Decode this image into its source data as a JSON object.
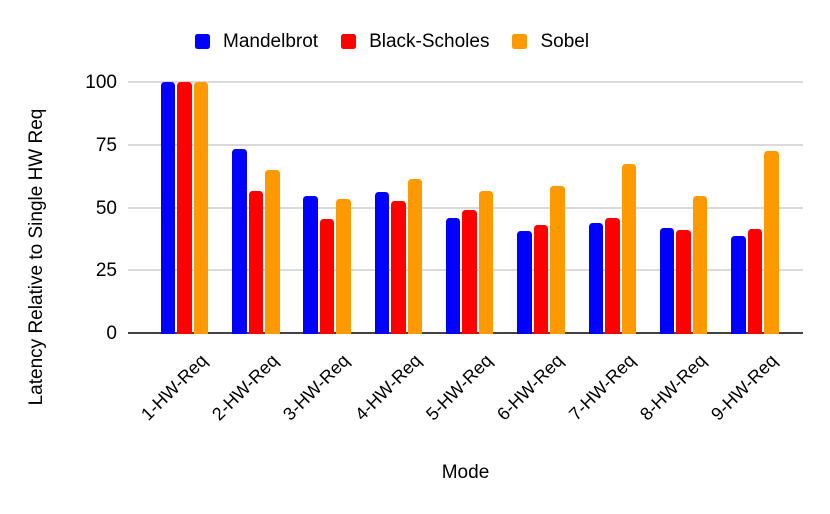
{
  "chart_data": {
    "type": "bar",
    "title": "",
    "xlabel": "Mode",
    "ylabel": "Latency Relative to Single HW Req",
    "categories": [
      "1-HW-Req",
      "2-HW-Req",
      "3-HW-Req",
      "4-HW-Req",
      "5-HW-Req",
      "6-HW-Req",
      "7-HW-Req",
      "8-HW-Req",
      "9-HW-Req"
    ],
    "series": [
      {
        "name": "Mandelbrot",
        "color": "#0000FF",
        "values": [
          100,
          73.5,
          54.5,
          56.0,
          46.0,
          40.5,
          44.0,
          42.0,
          38.5
        ]
      },
      {
        "name": "Black-Scholes",
        "color": "#FF0000",
        "values": [
          100,
          56.5,
          45.5,
          52.5,
          49.0,
          43.0,
          46.0,
          41.0,
          41.5
        ]
      },
      {
        "name": "Sobel",
        "color": "#FF9900",
        "values": [
          100,
          65.0,
          53.5,
          61.5,
          56.5,
          58.5,
          67.5,
          54.5,
          72.5
        ]
      }
    ],
    "y_ticks": [
      0,
      25,
      50,
      75,
      100
    ],
    "ylim": [
      0,
      100
    ],
    "grid": true,
    "legend_position": "top"
  },
  "colors": {
    "gridline": "#DADADA",
    "axis_line": "#424242",
    "text": "#000000",
    "background": "#FFFFFF"
  }
}
